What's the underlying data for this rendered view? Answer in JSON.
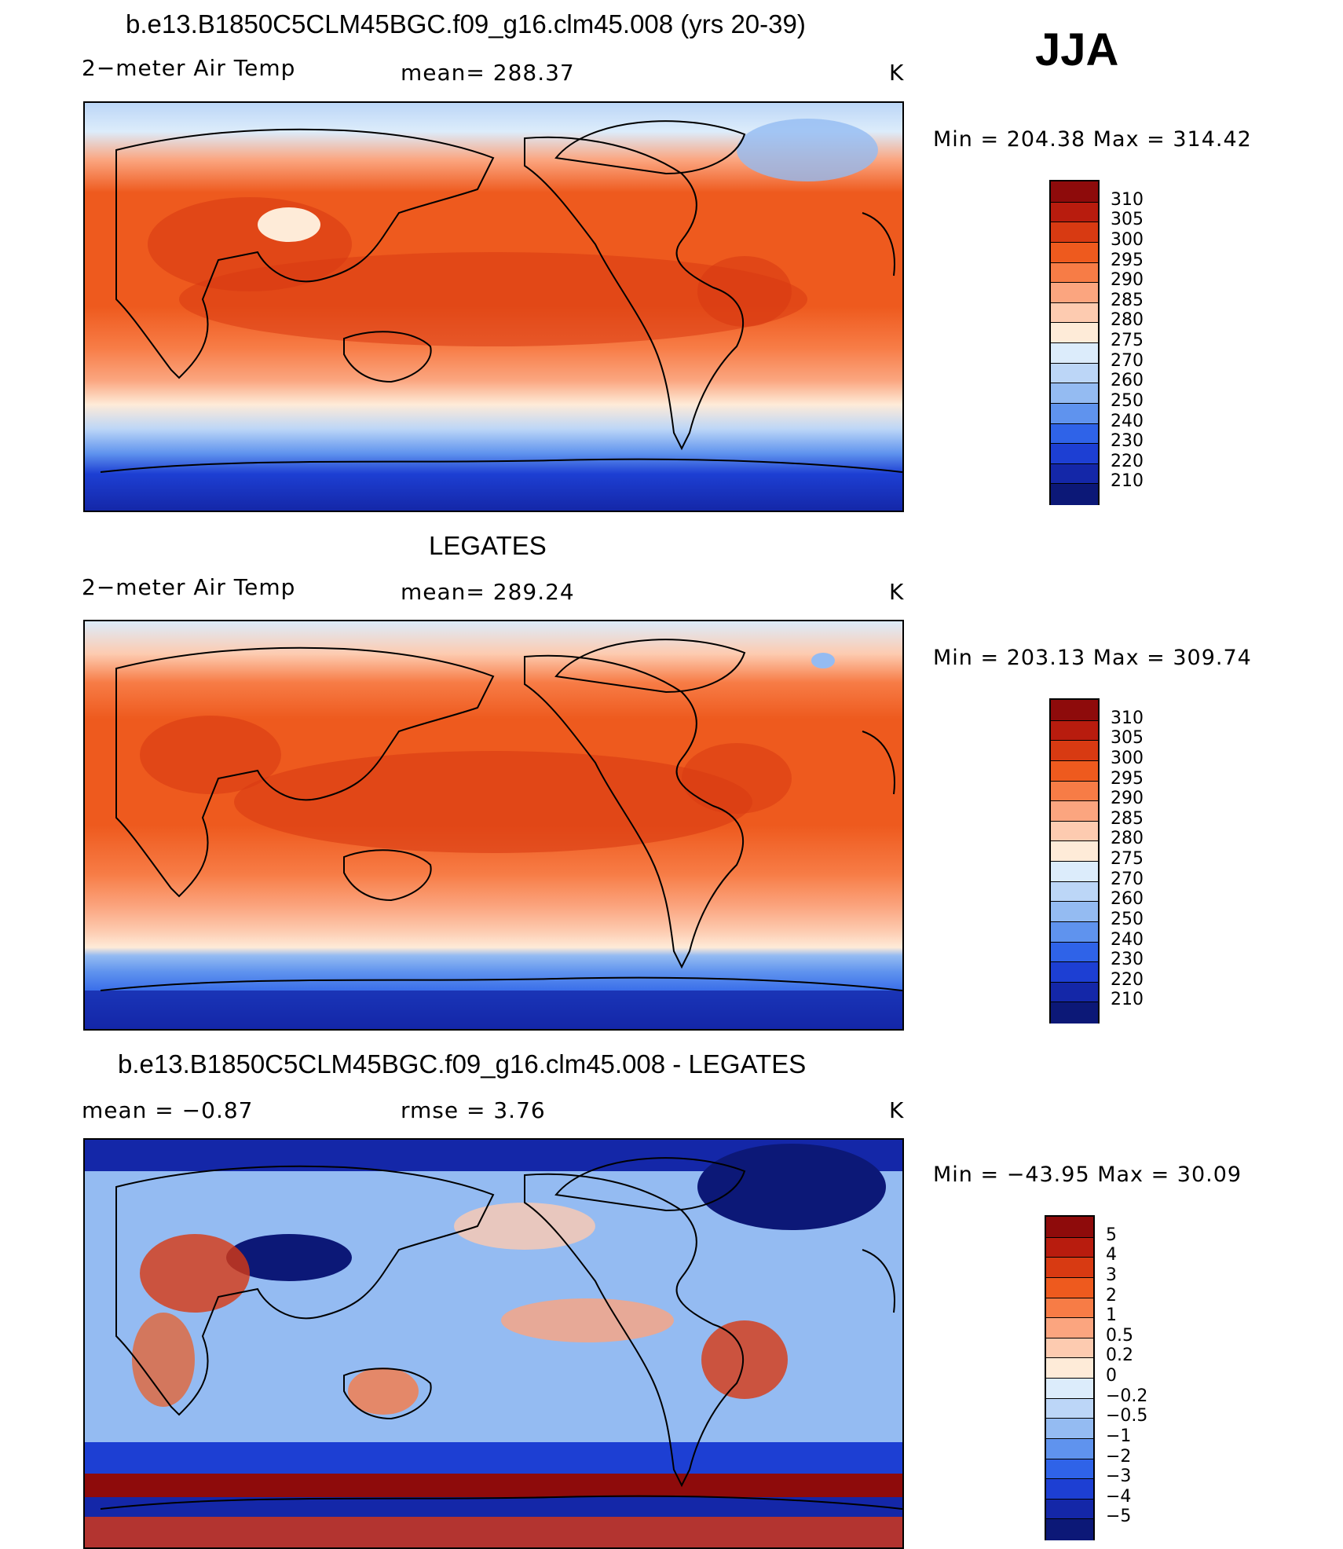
{
  "season": "JJA",
  "panels": [
    {
      "id": "model",
      "title": "b.e13.B1850C5CLM45BGC.f09_g16.clm45.008 (yrs 20-39)",
      "left_label": "2−meter Air Temp",
      "center_label": "mean=  288.37",
      "units": "K",
      "minmax": "Min  =  204.38  Max  =  314.42",
      "colorbar": {
        "colors": [
          "#8e0b0b",
          "#b81c0e",
          "#d83a12",
          "#ee5a1e",
          "#f77c46",
          "#fba57f",
          "#fdcbb0",
          "#feebd8",
          "#dcecfb",
          "#bcd6f7",
          "#94bbf2",
          "#5f93ee",
          "#2f63e8",
          "#1d3fd3",
          "#1427a8",
          "#0c1877"
        ],
        "labels": [
          "310",
          "305",
          "300",
          "295",
          "290",
          "285",
          "280",
          "275",
          "270",
          "260",
          "250",
          "240",
          "230",
          "220",
          "210"
        ]
      }
    },
    {
      "id": "obs",
      "title": "LEGATES",
      "left_label": "2−meter Air Temp",
      "center_label": "mean=  289.24",
      "units": "K",
      "minmax": "Min  =  203.13  Max  =  309.74",
      "colorbar": {
        "colors": [
          "#8e0b0b",
          "#b81c0e",
          "#d83a12",
          "#ee5a1e",
          "#f77c46",
          "#fba57f",
          "#fdcbb0",
          "#feebd8",
          "#dcecfb",
          "#bcd6f7",
          "#94bbf2",
          "#5f93ee",
          "#2f63e8",
          "#1d3fd3",
          "#1427a8",
          "#0c1877"
        ],
        "labels": [
          "310",
          "305",
          "300",
          "295",
          "290",
          "285",
          "280",
          "275",
          "270",
          "260",
          "250",
          "240",
          "230",
          "220",
          "210"
        ]
      }
    },
    {
      "id": "diff",
      "title": "b.e13.B1850C5CLM45BGC.f09_g16.clm45.008 - LEGATES",
      "left_label": "mean  =    −0.87",
      "center_label": "rmse  =     3.76",
      "units": "K",
      "minmax": "Min  =  −43.95  Max  =    30.09",
      "colorbar": {
        "colors": [
          "#8e0b0b",
          "#b81c0e",
          "#d83a12",
          "#ee5a1e",
          "#f77c46",
          "#fba57f",
          "#fdcbb0",
          "#feebd8",
          "#dcecfb",
          "#bcd6f7",
          "#94bbf2",
          "#5f93ee",
          "#2f63e8",
          "#1d3fd3",
          "#1427a8",
          "#0c1877"
        ],
        "labels": [
          "5",
          "4",
          "3",
          "2",
          "1",
          "0.5",
          "0.2",
          "0",
          "−0.2",
          "−0.5",
          "−1",
          "−2",
          "−3",
          "−4",
          "−5"
        ]
      }
    }
  ]
}
